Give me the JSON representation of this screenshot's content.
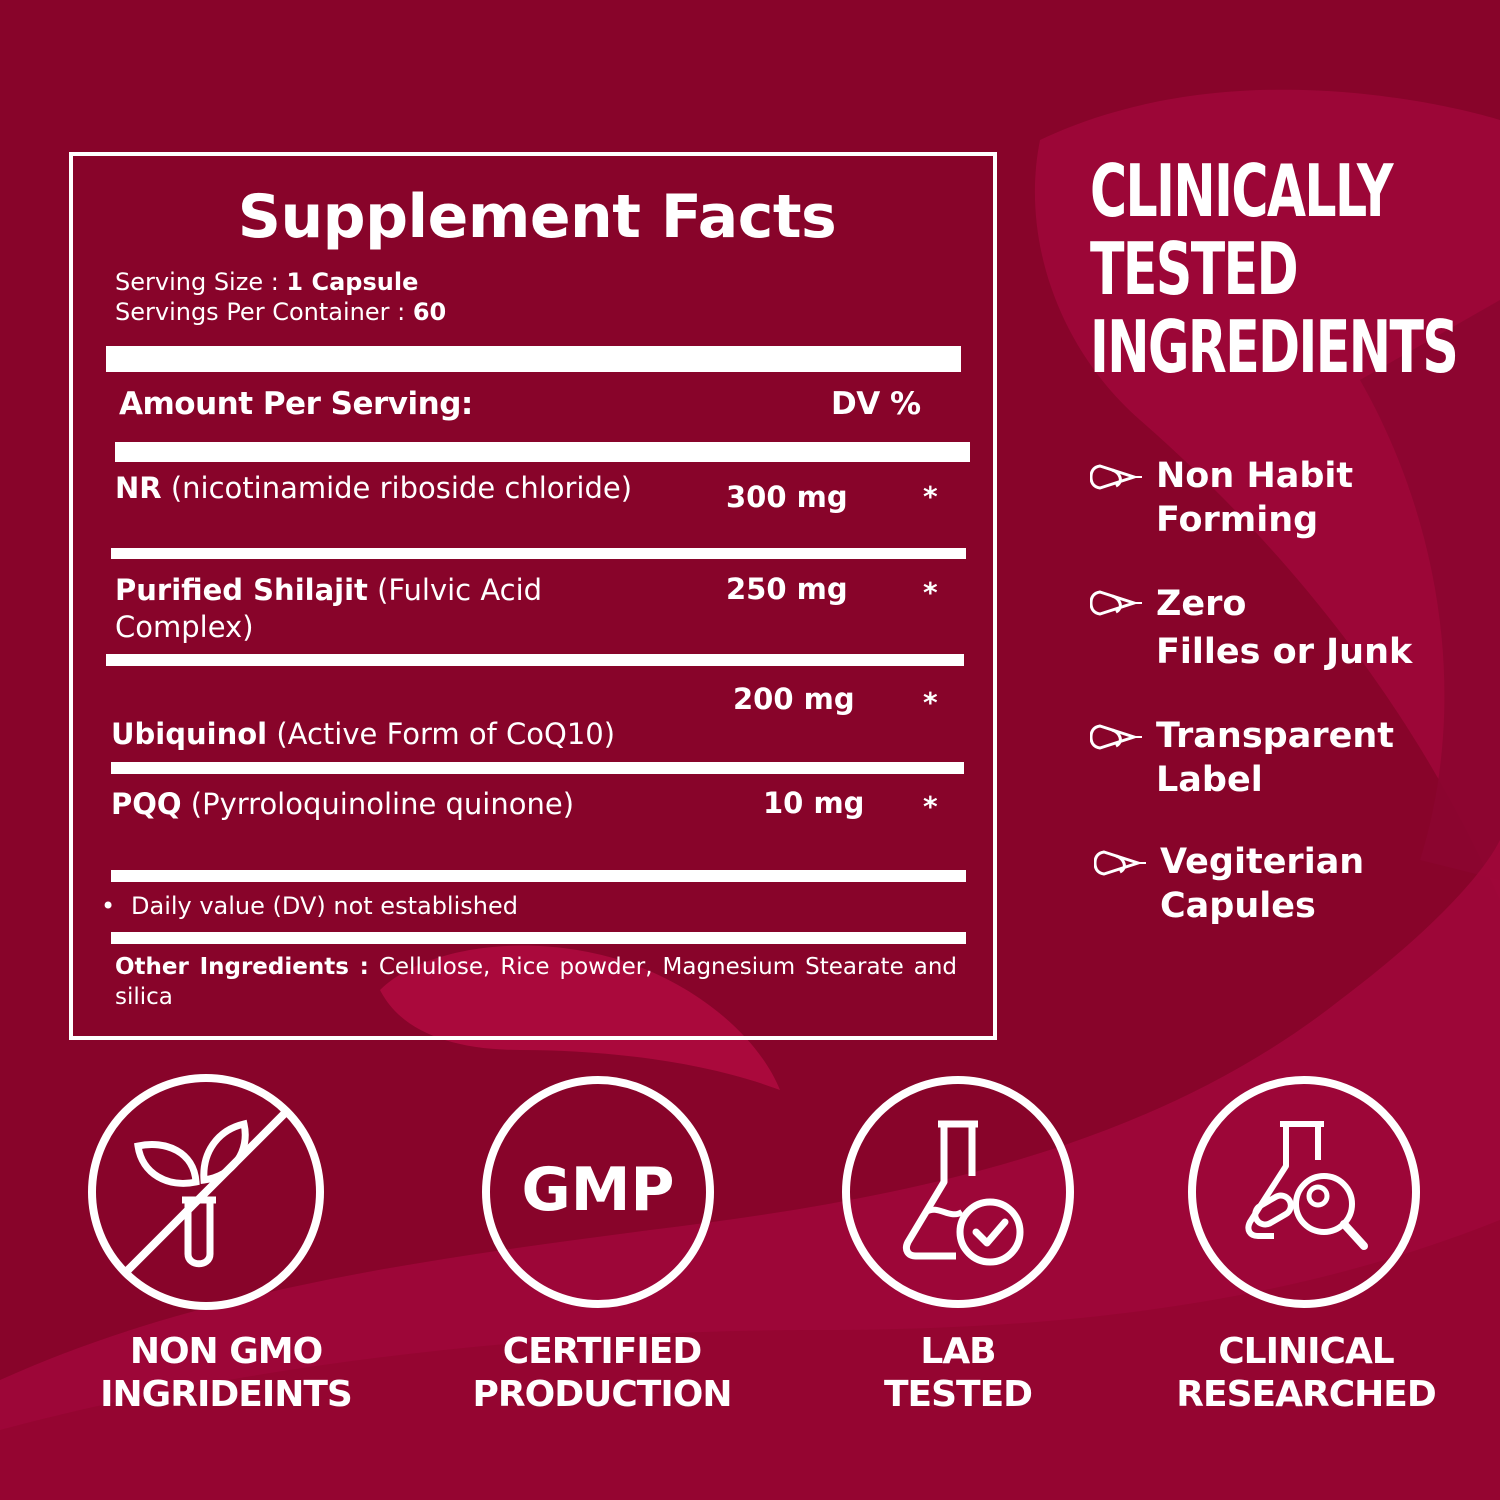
{
  "colors": {
    "background": "#88042a",
    "accent": "#a8083a",
    "foreground": "#ffffff"
  },
  "facts": {
    "title": "Supplement Facts",
    "serving_size_label": "Serving Size : ",
    "serving_size_value": "1 Capsule",
    "servings_label": "Servings Per Container : ",
    "servings_value": "60",
    "amount_header": "Amount Per Serving:",
    "dv_header": "DV %",
    "rows": [
      {
        "name_bold": "NR",
        "name_rest": " (nicotinamide riboside chloride)",
        "amount": "300 mg",
        "dv": "*"
      },
      {
        "name_bold": "Purified  Shilajit",
        "name_rest": " (Fulvic Acid Complex)",
        "amount": "250 mg",
        "dv": "*"
      },
      {
        "name_bold": "Ubiquinol",
        "name_rest": " (Active Form of CoQ10)",
        "amount": "200 mg",
        "dv": "*"
      },
      {
        "name_bold": "PQQ",
        "name_rest": " (Pyrroloquinoline quinone)",
        "amount": "10 mg",
        "dv": "*"
      }
    ],
    "footnote_bullet": "•",
    "footnote": "Daily value (DV) not established",
    "other_label": "Other  Ingredients  :",
    "other_value": "  Cellulose, Rice powder, Magnesium Stearate and silica"
  },
  "headline": {
    "line1": "CLINICALLY",
    "line2": "TESTED",
    "line3": "INGREDIENTS"
  },
  "benefits": [
    {
      "line1": "Non Habit",
      "line2": "Forming",
      "icon": "capsule-icon"
    },
    {
      "line1": "Zero",
      "line2": "Filles or Junk",
      "icon": "capsule-icon"
    },
    {
      "line1": "Transparent",
      "line2": "Label",
      "icon": "capsule-icon"
    },
    {
      "line1": "Vegiterian",
      "line2": "Capules",
      "icon": "capsule-icon"
    }
  ],
  "badges": [
    {
      "icon": "non-gmo-icon",
      "line1": "NON GMO",
      "line2": "INGRIDEINTS"
    },
    {
      "icon": "gmp-icon",
      "text": "GMP",
      "line1": "CERTIFIED",
      "line2": "PRODUCTION"
    },
    {
      "icon": "lab-flask-icon",
      "line1": "LAB",
      "line2": "TESTED"
    },
    {
      "icon": "clinical-research-icon",
      "line1": "CLINICAL",
      "line2": "RESEARCHED"
    }
  ]
}
